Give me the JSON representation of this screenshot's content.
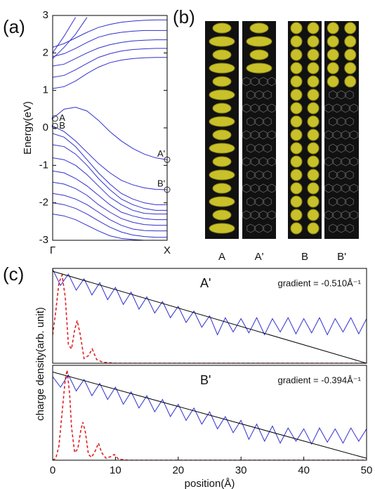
{
  "panel_labels": [
    "(a)",
    "(b)",
    "(c)"
  ],
  "panel_b": {
    "labels": [
      "A",
      "A'",
      "B",
      "B'"
    ]
  },
  "chart_data": [
    {
      "type": "line",
      "ylabel": "Energy(eV)",
      "color": "#3030d0",
      "xlim": [
        0,
        1
      ],
      "xticks": [
        {
          "value": 0,
          "label": "Γ"
        },
        {
          "value": 1,
          "label": "X"
        }
      ],
      "ylim": [
        -3,
        3
      ],
      "yticks": [
        -3,
        -2,
        -1,
        0,
        1,
        2,
        3
      ],
      "x": [
        0,
        0.1,
        0.2,
        0.3,
        0.4,
        0.5,
        0.6,
        0.7,
        0.8,
        0.9,
        1
      ],
      "series": [
        {
          "values": [
            0.25,
            0.5,
            0.55,
            0.45,
            0.2,
            -0.1,
            -0.35,
            -0.55,
            -0.7,
            -0.8,
            -0.85
          ]
        },
        {
          "values": [
            0.05,
            -0.1,
            -0.35,
            -0.65,
            -0.95,
            -1.2,
            -1.4,
            -1.52,
            -1.6,
            -1.64,
            -1.65
          ]
        },
        {
          "values": [
            -0.15,
            -0.25,
            -0.5,
            -0.85,
            -1.2,
            -1.5,
            -1.75,
            -1.9,
            -2.0,
            -2.05,
            -2.05
          ]
        },
        {
          "values": [
            -0.45,
            -0.5,
            -0.7,
            -1.0,
            -1.35,
            -1.65,
            -1.9,
            -2.05,
            -2.15,
            -2.2,
            -2.2
          ]
        },
        {
          "values": [
            -0.8,
            -0.85,
            -1.0,
            -1.25,
            -1.55,
            -1.85,
            -2.05,
            -2.2,
            -2.28,
            -2.3,
            -2.3
          ]
        },
        {
          "values": [
            -1.15,
            -1.2,
            -1.35,
            -1.55,
            -1.8,
            -2.05,
            -2.25,
            -2.35,
            -2.42,
            -2.45,
            -2.45
          ]
        },
        {
          "values": [
            -1.45,
            -1.5,
            -1.62,
            -1.8,
            -2.05,
            -2.25,
            -2.42,
            -2.52,
            -2.58,
            -2.6,
            -2.6
          ]
        },
        {
          "values": [
            -1.75,
            -1.8,
            -1.9,
            -2.05,
            -2.25,
            -2.45,
            -2.6,
            -2.7,
            -2.74,
            -2.75,
            -2.75
          ]
        },
        {
          "values": [
            -2.0,
            -2.05,
            -2.15,
            -2.3,
            -2.48,
            -2.65,
            -2.78,
            -2.86,
            -2.9,
            -2.92,
            -2.92
          ]
        },
        {
          "values": [
            -2.3,
            -2.35,
            -2.45,
            -2.6,
            -2.75,
            -2.88,
            -2.95,
            -2.98,
            -3.0,
            -3.0,
            -3.0
          ]
        },
        {
          "values": [
            1.05,
            1.1,
            1.25,
            1.45,
            1.62,
            1.74,
            1.81,
            1.85,
            1.87,
            1.88,
            1.88
          ]
        },
        {
          "values": [
            1.35,
            1.4,
            1.55,
            1.72,
            1.88,
            1.98,
            2.05,
            2.09,
            2.11,
            2.12,
            2.12
          ]
        },
        {
          "values": [
            1.65,
            1.7,
            1.85,
            2.0,
            2.13,
            2.22,
            2.28,
            2.32,
            2.34,
            2.35,
            2.35
          ]
        },
        {
          "values": [
            1.9,
            1.98,
            2.12,
            2.28,
            2.42,
            2.5,
            2.55,
            2.58,
            2.6,
            2.6,
            2.6
          ]
        },
        {
          "values": [
            2.15,
            2.25,
            2.4,
            2.55,
            2.68,
            2.76,
            2.82,
            2.85,
            2.87,
            2.88,
            2.88
          ]
        },
        {
          "values": [
            2.0,
            2.45,
            2.95,
            null,
            null,
            null,
            null,
            null,
            null,
            null,
            null
          ]
        },
        {
          "values": [
            1.85,
            2.15,
            2.5,
            2.95,
            null,
            null,
            null,
            null,
            null,
            null,
            null
          ]
        }
      ],
      "markers": [
        {
          "label": "A",
          "x": 0.02,
          "y": 0.25
        },
        {
          "label": "B",
          "x": 0.02,
          "y": 0.05
        },
        {
          "label": "A'",
          "x": 1,
          "y": -0.85
        },
        {
          "label": "B'",
          "x": 1,
          "y": -1.65
        }
      ]
    },
    {
      "type": "line",
      "label": "A'",
      "gradient_label": "gradient = -0.510Å⁻¹",
      "xlim": [
        0,
        50
      ],
      "ylim": [
        0,
        1
      ],
      "series": [
        {
          "color": "#3030d0",
          "x": [
            0,
            1.25,
            2.5,
            3.75,
            5,
            6.25,
            7.5,
            8.75,
            10,
            11.25,
            12.5,
            13.75,
            15,
            16.25,
            17.5,
            18.75,
            20,
            21.25,
            22.5,
            23.75,
            25,
            26.25,
            27.5,
            28.75,
            30,
            31.25,
            32.5,
            33.75,
            35,
            36.25,
            37.5,
            38.75,
            40,
            41.25,
            42.5,
            43.75,
            45,
            46.25,
            47.5,
            48.75,
            50
          ],
          "values": [
            0.99,
            0.82,
            0.94,
            0.77,
            0.89,
            0.72,
            0.85,
            0.67,
            0.8,
            0.62,
            0.75,
            0.57,
            0.7,
            0.53,
            0.65,
            0.48,
            0.6,
            0.43,
            0.55,
            0.38,
            0.5,
            0.3,
            0.48,
            0.33,
            0.47,
            0.32,
            0.48,
            0.3,
            0.47,
            0.33,
            0.48,
            0.31,
            0.47,
            0.32,
            0.48,
            0.3,
            0.47,
            0.33,
            0.48,
            0.31,
            0.47
          ]
        },
        {
          "color": "#e02020",
          "style": "dashed",
          "x": [
            0,
            0.5,
            1,
            1.5,
            2,
            2.5,
            3,
            3.5,
            3.9,
            4.4,
            5,
            5.7,
            6.3,
            7,
            8,
            10,
            14,
            50
          ],
          "values": [
            0.3,
            0.55,
            0.85,
            0.93,
            0.7,
            0.2,
            0.15,
            0.35,
            0.45,
            0.3,
            0.05,
            0.08,
            0.15,
            0.04,
            0.01,
            0,
            0,
            0
          ]
        },
        {
          "color": "#000000",
          "x": [
            0,
            50
          ],
          "values": [
            0.97,
            0
          ]
        }
      ]
    },
    {
      "type": "line",
      "label": "B'",
      "gradient_label": "gradient = -0.394Å⁻¹",
      "xlabel": "position(Å)",
      "ylabel": "charge density(arb. unit)",
      "xlim": [
        0,
        50
      ],
      "xticks": [
        0,
        10,
        20,
        30,
        40,
        50
      ],
      "ylim": [
        0,
        1
      ],
      "series": [
        {
          "color": "#3030d0",
          "x": [
            0,
            1.25,
            2.5,
            3.75,
            5,
            6.25,
            7.5,
            8.75,
            10,
            11.25,
            12.5,
            13.75,
            15,
            16.25,
            17.5,
            18.75,
            20,
            21.25,
            22.5,
            23.75,
            25,
            26.25,
            27.5,
            28.75,
            30,
            31.25,
            32.5,
            33.75,
            35,
            36.25,
            37.5,
            38.75,
            40,
            41.25,
            42.5,
            43.75,
            45,
            46.25,
            47.5,
            48.75,
            50
          ],
          "values": [
            0.88,
            0.77,
            0.9,
            0.73,
            0.85,
            0.68,
            0.81,
            0.64,
            0.77,
            0.59,
            0.72,
            0.55,
            0.68,
            0.51,
            0.64,
            0.46,
            0.59,
            0.42,
            0.55,
            0.38,
            0.51,
            0.33,
            0.46,
            0.29,
            0.42,
            0.22,
            0.38,
            0.2,
            0.36,
            0.18,
            0.34,
            0.2,
            0.33,
            0.17,
            0.34,
            0.19,
            0.33,
            0.18,
            0.34,
            0.2,
            0.33
          ]
        },
        {
          "color": "#e02020",
          "style": "dashed",
          "x": [
            0,
            0.5,
            1,
            1.5,
            2,
            2.3,
            2.7,
            3,
            3.5,
            4,
            4.5,
            4.8,
            5.2,
            5.7,
            6.2,
            6.8,
            7.3,
            7.8,
            8.5,
            9.3,
            9.8,
            10.5,
            12,
            16,
            50
          ],
          "values": [
            0,
            0.02,
            0.15,
            0.5,
            0.85,
            0.95,
            0.7,
            0.35,
            0.08,
            0.12,
            0.32,
            0.4,
            0.3,
            0.06,
            0.03,
            0.1,
            0.18,
            0.08,
            0.02,
            0.04,
            0.06,
            0.01,
            0,
            0,
            0
          ]
        },
        {
          "color": "#000000",
          "x": [
            0,
            50
          ],
          "values": [
            0.93,
            0.02
          ]
        }
      ]
    }
  ]
}
